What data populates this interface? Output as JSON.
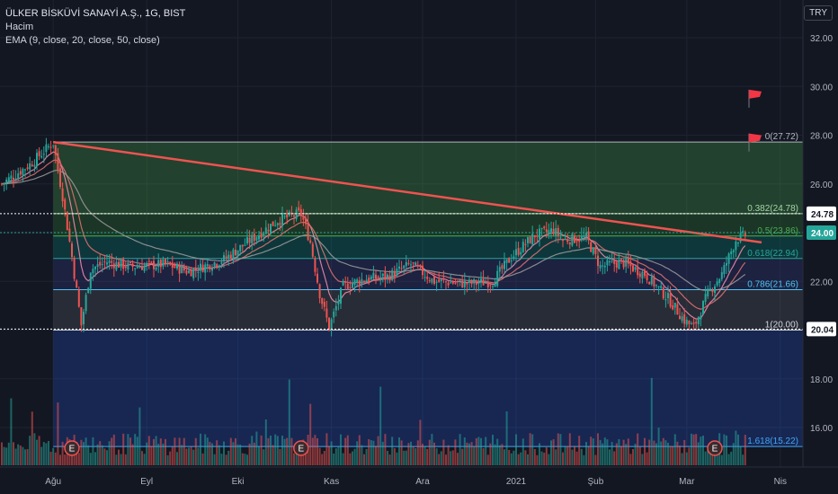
{
  "legend": {
    "title": "ÜLKER BİSKÜVİ SANAYİ A.Ş., 1G, BIST",
    "volume": "Hacim",
    "ema": "EMA (9, close, 20, close, 50, close)"
  },
  "currency": "TRY",
  "colors": {
    "background": "#131722",
    "up": "#26a69a",
    "down": "#ef5350",
    "trendline": "#ef5350",
    "grid": "#1f2330",
    "axis_text": "#b2b5be"
  },
  "chart_data": {
    "type": "candlestick",
    "title": "ÜLKER BİSKÜVİ SANAYİ A.Ş., 1G, BIST",
    "ylim": [
      14.6,
      33.0
    ],
    "y_ticks": [
      "32.00",
      "30.00",
      "28.00",
      "26.00",
      "22.00",
      "18.00",
      "16.00"
    ],
    "x_ticks": [
      "Ağu",
      "Eyl",
      "Eki",
      "Kas",
      "Ara",
      "2021",
      "Şub",
      "Mar",
      "Nis"
    ],
    "price_labels": [
      {
        "value": 24.78,
        "text": "24.78",
        "style": "white"
      },
      {
        "value": 24.0,
        "text": "24.00",
        "style": "current"
      },
      {
        "value": 20.04,
        "text": "20.04",
        "style": "white"
      }
    ],
    "fib_levels": [
      {
        "ratio": 0,
        "price": 27.72,
        "text": "0(27.72)"
      },
      {
        "ratio": 0.382,
        "price": 24.78,
        "text": "0.382(24.78)"
      },
      {
        "ratio": 0.5,
        "price": 23.86,
        "text": "0.5(23.86)"
      },
      {
        "ratio": 0.618,
        "price": 22.94,
        "text": "0.618(22.94)"
      },
      {
        "ratio": 0.786,
        "price": 21.66,
        "text": "0.786(21.66)"
      },
      {
        "ratio": 1,
        "price": 20.0,
        "text": "1(20.00)"
      },
      {
        "ratio": 1.618,
        "price": 15.22,
        "text": "1.618(15.22)"
      }
    ],
    "trendline": {
      "from": {
        "index": 22,
        "price": 27.72
      },
      "to": {
        "index": 325,
        "price": 23.6
      }
    },
    "earnings_markers": [
      {
        "index": 30,
        "label": "E"
      },
      {
        "index": 128,
        "label": "E"
      },
      {
        "index": 305,
        "label": "E"
      }
    ],
    "flags": [
      {
        "price": 29.5
      },
      {
        "price": 27.7
      }
    ],
    "series": [
      {
        "name": "close",
        "anchors": [
          [
            0,
            26.0
          ],
          [
            12,
            26.8
          ],
          [
            22,
            27.7
          ],
          [
            26,
            25.5
          ],
          [
            30,
            23.0
          ],
          [
            34,
            20.2
          ],
          [
            38,
            22.5
          ],
          [
            45,
            22.8
          ],
          [
            55,
            22.6
          ],
          [
            70,
            22.7
          ],
          [
            80,
            22.4
          ],
          [
            95,
            22.9
          ],
          [
            105,
            23.6
          ],
          [
            118,
            24.5
          ],
          [
            128,
            24.8
          ],
          [
            132,
            23.6
          ],
          [
            136,
            21.5
          ],
          [
            140,
            20.1
          ],
          [
            146,
            21.8
          ],
          [
            155,
            22.1
          ],
          [
            165,
            22.2
          ],
          [
            175,
            22.7
          ],
          [
            185,
            22.0
          ],
          [
            200,
            21.9
          ],
          [
            210,
            22.0
          ],
          [
            218,
            23.0
          ],
          [
            228,
            23.9
          ],
          [
            236,
            24.1
          ],
          [
            240,
            23.7
          ],
          [
            250,
            23.8
          ],
          [
            256,
            22.6
          ],
          [
            265,
            22.8
          ],
          [
            275,
            22.3
          ],
          [
            285,
            21.3
          ],
          [
            292,
            20.4
          ],
          [
            296,
            20.1
          ],
          [
            302,
            21.5
          ],
          [
            308,
            22.3
          ],
          [
            314,
            23.7
          ],
          [
            318,
            23.9
          ]
        ]
      },
      {
        "name": "EMA 9",
        "offset": -0.05
      },
      {
        "name": "EMA 20",
        "offset": -0.1
      },
      {
        "name": "EMA 50",
        "offset": -0.3
      }
    ]
  }
}
